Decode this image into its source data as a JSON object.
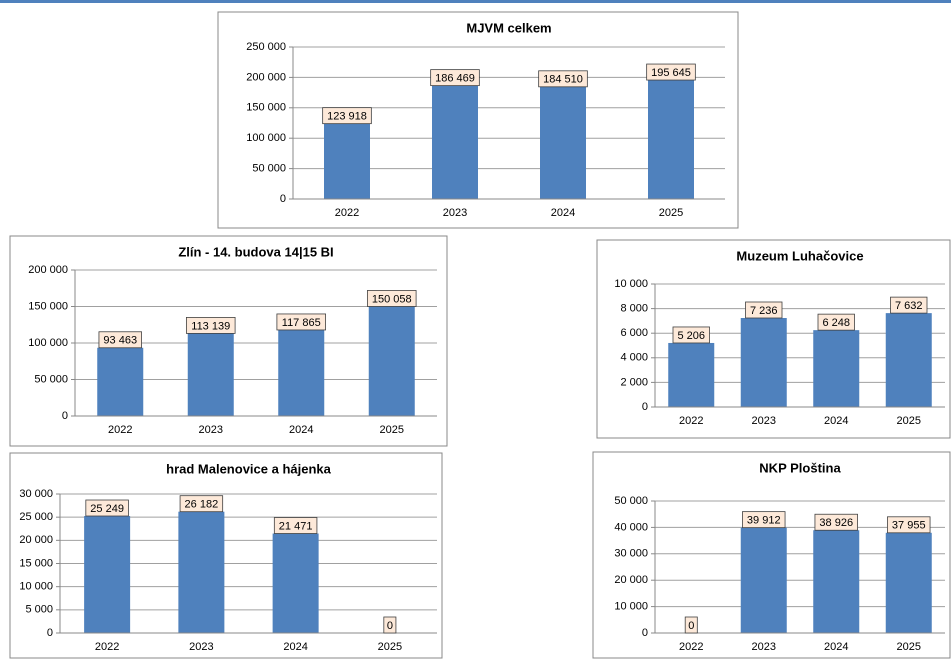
{
  "chart_data": [
    {
      "type": "bar",
      "title": "MJVM celkem",
      "categories": [
        "2022",
        "2023",
        "2024",
        "2025"
      ],
      "values": [
        123918,
        186469,
        184510,
        195645
      ],
      "value_labels": [
        "123 918",
        "186 469",
        "184 510",
        "195 645"
      ],
      "color": "#4f81bd",
      "grid": true,
      "ylim": [
        0,
        250000
      ],
      "yticks": [
        0,
        {
          "value": 50000,
          "label": "50 000"
        },
        {
          "value": 100000,
          "label": "100 000"
        },
        {
          "value": 150000,
          "label": "150 000"
        },
        {
          "value": 200000,
          "label": "200 000"
        },
        {
          "value": 250000,
          "label": "250 000"
        }
      ]
    },
    {
      "type": "bar",
      "title": "Zlín - 14. budova 14|15 BI",
      "categories": [
        "2022",
        "2023",
        "2024",
        "2025"
      ],
      "values": [
        93463,
        113139,
        117865,
        150058
      ],
      "value_labels": [
        "93 463",
        "113 139",
        "117 865",
        "150 058"
      ],
      "color": "#4f81bd",
      "grid": true,
      "ylim": [
        0,
        200000
      ],
      "yticks": [
        0,
        {
          "value": 50000,
          "label": "50 000"
        },
        {
          "value": 100000,
          "label": "100 000"
        },
        {
          "value": 150000,
          "label": "150 000"
        },
        {
          "value": 200000,
          "label": "200 000"
        }
      ]
    },
    {
      "type": "bar",
      "title": "Muzeum Luhačovice",
      "categories": [
        "2022",
        "2023",
        "2024",
        "2025"
      ],
      "values": [
        5206,
        7236,
        6248,
        7632
      ],
      "value_labels": [
        "5 206",
        "7 236",
        "6 248",
        "7 632"
      ],
      "color": "#4f81bd",
      "grid": true,
      "ylim": [
        0,
        10000
      ],
      "yticks": [
        0,
        {
          "value": 2000,
          "label": "2 000"
        },
        {
          "value": 4000,
          "label": "4 000"
        },
        {
          "value": 6000,
          "label": "6 000"
        },
        {
          "value": 8000,
          "label": "8 000"
        },
        {
          "value": 10000,
          "label": "10 000"
        }
      ]
    },
    {
      "type": "bar",
      "title": "hrad  Malenovice a hájenka",
      "categories": [
        "2022",
        "2023",
        "2024",
        "2025"
      ],
      "values": [
        25249,
        26182,
        21471,
        0
      ],
      "value_labels": [
        "25 249",
        "26 182",
        "21 471",
        "0"
      ],
      "color": "#4f81bd",
      "grid": true,
      "ylim": [
        0,
        30000
      ],
      "yticks": [
        0,
        {
          "value": 5000,
          "label": "5 000"
        },
        {
          "value": 10000,
          "label": "10 000"
        },
        {
          "value": 15000,
          "label": "15 000"
        },
        {
          "value": 20000,
          "label": "20 000"
        },
        {
          "value": 25000,
          "label": "25 000"
        },
        {
          "value": 30000,
          "label": "30 000"
        }
      ]
    },
    {
      "type": "bar",
      "title": "NKP Ploština",
      "categories": [
        "2022",
        "2023",
        "2024",
        "2025"
      ],
      "values": [
        0,
        39912,
        38926,
        37955
      ],
      "value_labels": [
        "0",
        "39 912",
        "38 926",
        "37 955"
      ],
      "color": "#4f81bd",
      "grid": true,
      "ylim": [
        0,
        50000
      ],
      "yticks": [
        0,
        {
          "value": 10000,
          "label": "10 000"
        },
        {
          "value": 20000,
          "label": "20 000"
        },
        {
          "value": 30000,
          "label": "30 000"
        },
        {
          "value": 40000,
          "label": "40 000"
        },
        {
          "value": 50000,
          "label": "50 000"
        }
      ]
    }
  ]
}
